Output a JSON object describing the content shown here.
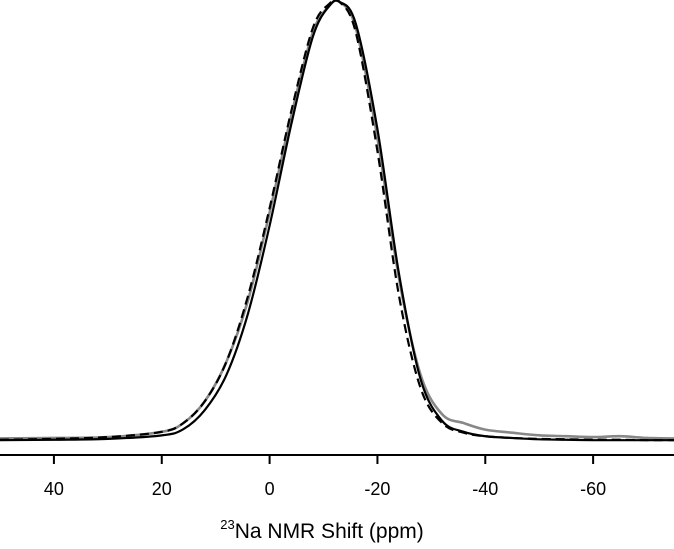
{
  "chart_data": {
    "type": "line",
    "title": "",
    "xlabel": {
      "superscript": "23",
      "text": "Na NMR Shift (ppm)"
    },
    "ylabel": "",
    "x_reversed": true,
    "xlim": [
      50,
      -75
    ],
    "ylim": [
      -0.01,
      1.0
    ],
    "xticks": [
      40,
      20,
      0,
      -20,
      -40,
      -60
    ],
    "xtick_labels": [
      "40",
      "20",
      "0",
      "-20",
      "-40",
      "-60"
    ],
    "grid": false,
    "legend": "none",
    "series": [
      {
        "style": "solid",
        "color": "#888888",
        "x": [
          50,
          40,
          30,
          20,
          16,
          12,
          8,
          4,
          0,
          -4,
          -8,
          -11,
          -13,
          -16,
          -20,
          -24,
          -28,
          -32,
          -36,
          -40,
          -45,
          -50,
          -55,
          -60,
          -65,
          -70,
          -75
        ],
        "y": [
          0.005,
          0.006,
          0.008,
          0.02,
          0.04,
          0.09,
          0.18,
          0.32,
          0.52,
          0.74,
          0.93,
          0.99,
          1.0,
          0.94,
          0.69,
          0.37,
          0.15,
          0.06,
          0.04,
          0.025,
          0.018,
          0.012,
          0.01,
          0.008,
          0.01,
          0.006,
          0.005
        ]
      },
      {
        "style": "solid",
        "color": "#000000",
        "x": [
          50,
          40,
          30,
          20,
          16,
          12,
          8,
          4,
          0,
          -4,
          -8,
          -11,
          -13,
          -16,
          -20,
          -24,
          -28,
          -32,
          -36,
          -40,
          -45,
          -50,
          -55,
          -60,
          -65,
          -70,
          -75
        ],
        "y": [
          0.001,
          0.002,
          0.004,
          0.012,
          0.026,
          0.07,
          0.15,
          0.29,
          0.49,
          0.72,
          0.92,
          0.99,
          1.0,
          0.95,
          0.71,
          0.38,
          0.14,
          0.045,
          0.02,
          0.01,
          0.006,
          0.003,
          0.002,
          0.001,
          0.001,
          0.001,
          0.001
        ]
      },
      {
        "style": "dashed",
        "color": "#000000",
        "x": [
          50,
          40,
          30,
          20,
          16,
          12,
          8,
          4,
          0,
          -4,
          -8,
          -11,
          -13,
          -16,
          -20,
          -24,
          -28,
          -32,
          -36,
          -40,
          -45,
          -50,
          -55,
          -60,
          -65,
          -70,
          -75
        ],
        "y": [
          0.002,
          0.004,
          0.008,
          0.02,
          0.04,
          0.09,
          0.18,
          0.33,
          0.53,
          0.75,
          0.94,
          0.995,
          1.0,
          0.93,
          0.66,
          0.33,
          0.12,
          0.04,
          0.018,
          0.01,
          0.006,
          0.004,
          0.003,
          0.002,
          0.002,
          0.001,
          0.001
        ]
      }
    ]
  }
}
